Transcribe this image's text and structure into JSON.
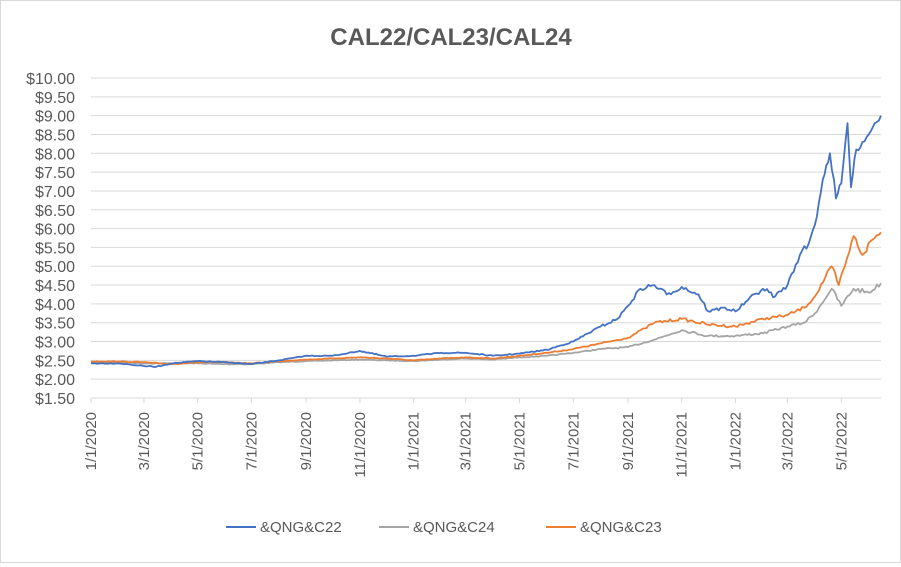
{
  "chart_data": {
    "type": "line",
    "title": "CAL22/CAL23/CAL24",
    "xlabel": "",
    "ylabel": "",
    "ylim": [
      1.5,
      10.0
    ],
    "yticks": [
      "$1.50",
      "$2.00",
      "$2.50",
      "$3.00",
      "$3.50",
      "$4.00",
      "$4.50",
      "$5.00",
      "$5.50",
      "$6.00",
      "$6.50",
      "$7.00",
      "$7.50",
      "$8.00",
      "$8.50",
      "$9.00",
      "$9.50",
      "$10.00"
    ],
    "xlim": [
      "2020-01-01",
      "2022-06-15"
    ],
    "xticks": [
      "1/1/2020",
      "3/1/2020",
      "5/1/2020",
      "7/1/2020",
      "9/1/2020",
      "11/1/2020",
      "1/1/2021",
      "3/1/2021",
      "5/1/2021",
      "7/1/2021",
      "9/1/2021",
      "11/1/2021",
      "1/1/2022",
      "3/1/2022",
      "5/1/2022"
    ],
    "grid": "horizontal",
    "legend_position": "bottom",
    "series": [
      {
        "name": "&QNG&C22",
        "color": "#4472c4",
        "x": [
          "2020-01-01",
          "2020-02-01",
          "2020-03-01",
          "2020-03-15",
          "2020-04-01",
          "2020-05-01",
          "2020-06-01",
          "2020-07-01",
          "2020-08-01",
          "2020-09-01",
          "2020-10-01",
          "2020-11-01",
          "2020-12-01",
          "2021-01-01",
          "2021-02-01",
          "2021-03-01",
          "2021-04-01",
          "2021-05-01",
          "2021-06-01",
          "2021-07-01",
          "2021-08-01",
          "2021-08-20",
          "2021-09-01",
          "2021-09-15",
          "2021-10-01",
          "2021-10-15",
          "2021-11-01",
          "2021-11-20",
          "2021-12-01",
          "2021-12-20",
          "2022-01-01",
          "2022-01-15",
          "2022-02-01",
          "2022-02-15",
          "2022-03-01",
          "2022-03-15",
          "2022-03-25",
          "2022-04-01",
          "2022-04-10",
          "2022-04-18",
          "2022-04-25",
          "2022-05-01",
          "2022-05-08",
          "2022-05-12",
          "2022-05-18",
          "2022-05-25",
          "2022-06-01",
          "2022-06-08",
          "2022-06-15"
        ],
        "values": [
          2.42,
          2.42,
          2.35,
          2.33,
          2.42,
          2.48,
          2.45,
          2.4,
          2.5,
          2.62,
          2.62,
          2.75,
          2.6,
          2.62,
          2.7,
          2.7,
          2.62,
          2.68,
          2.78,
          3.0,
          3.4,
          3.6,
          3.95,
          4.4,
          4.5,
          4.25,
          4.45,
          4.25,
          3.8,
          3.9,
          3.8,
          4.1,
          4.4,
          4.2,
          4.5,
          5.3,
          5.6,
          6.1,
          7.3,
          8.0,
          6.8,
          7.2,
          8.8,
          7.1,
          8.1,
          8.3,
          8.5,
          8.8,
          9.0
        ]
      },
      {
        "name": "&QNG&C24",
        "color": "#a5a5a5",
        "x": [
          "2020-01-01",
          "2020-02-01",
          "2020-03-01",
          "2020-04-01",
          "2020-05-01",
          "2020-06-01",
          "2020-07-01",
          "2020-08-01",
          "2020-09-01",
          "2020-10-01",
          "2020-11-01",
          "2020-12-01",
          "2021-01-01",
          "2021-02-01",
          "2021-03-01",
          "2021-04-01",
          "2021-05-01",
          "2021-06-01",
          "2021-07-01",
          "2021-08-01",
          "2021-09-01",
          "2021-10-01",
          "2021-11-01",
          "2021-12-01",
          "2022-01-01",
          "2022-02-01",
          "2022-03-01",
          "2022-03-20",
          "2022-04-01",
          "2022-04-20",
          "2022-05-01",
          "2022-05-15",
          "2022-06-01",
          "2022-06-15"
        ],
        "values": [
          2.45,
          2.45,
          2.42,
          2.42,
          2.42,
          2.4,
          2.4,
          2.45,
          2.48,
          2.5,
          2.52,
          2.5,
          2.48,
          2.52,
          2.55,
          2.52,
          2.58,
          2.62,
          2.7,
          2.8,
          2.85,
          3.05,
          3.3,
          3.15,
          3.15,
          3.22,
          3.4,
          3.5,
          3.75,
          4.4,
          3.95,
          4.4,
          4.3,
          4.55
        ]
      },
      {
        "name": "&QNG&C23",
        "color": "#ed7d31",
        "x": [
          "2020-01-01",
          "2020-02-01",
          "2020-03-01",
          "2020-04-01",
          "2020-05-01",
          "2020-06-01",
          "2020-07-01",
          "2020-08-01",
          "2020-09-01",
          "2020-10-01",
          "2020-11-01",
          "2020-12-01",
          "2021-01-01",
          "2021-02-01",
          "2021-03-01",
          "2021-04-01",
          "2021-05-01",
          "2021-06-01",
          "2021-07-01",
          "2021-08-01",
          "2021-09-01",
          "2021-09-20",
          "2021-10-01",
          "2021-11-01",
          "2021-12-01",
          "2022-01-01",
          "2022-02-01",
          "2022-03-01",
          "2022-03-20",
          "2022-04-01",
          "2022-04-20",
          "2022-04-28",
          "2022-05-05",
          "2022-05-15",
          "2022-05-25",
          "2022-06-05",
          "2022-06-15"
        ],
        "values": [
          2.47,
          2.47,
          2.45,
          2.4,
          2.45,
          2.45,
          2.42,
          2.48,
          2.52,
          2.55,
          2.58,
          2.55,
          2.5,
          2.55,
          2.58,
          2.55,
          2.62,
          2.7,
          2.8,
          2.95,
          3.1,
          3.35,
          3.5,
          3.6,
          3.45,
          3.4,
          3.6,
          3.7,
          3.9,
          4.2,
          5.0,
          4.5,
          5.0,
          5.8,
          5.3,
          5.7,
          5.9
        ]
      }
    ]
  }
}
